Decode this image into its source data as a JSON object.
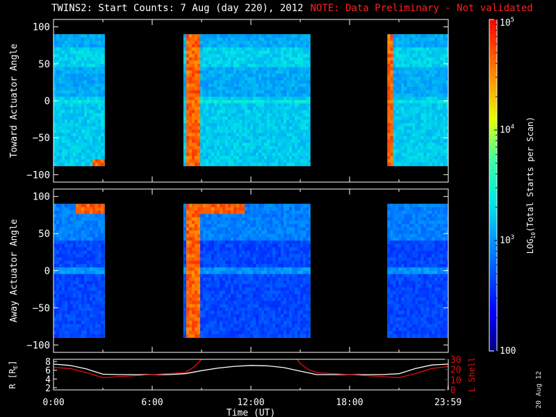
{
  "title": {
    "main": "TWINS2: Start Counts:  7 Aug (day 220), 2012",
    "note": "NOTE: Data Preliminary - Not validated"
  },
  "datestamp": "20 Aug 12",
  "colors": {
    "note": "#ff2020",
    "r_line": "#ffffff",
    "lshell_line": "#e01010",
    "frame": "#ffffff"
  },
  "chart_data": [
    {
      "type": "heatmap",
      "name": "toward",
      "ylabel": "Toward Actuator Angle",
      "ylim": [
        -110,
        110
      ],
      "yticks": [
        -100,
        -50,
        0,
        50,
        100
      ],
      "xlim": [
        0,
        24
      ],
      "data_yrange": [
        -88,
        90
      ],
      "data_blocks_hours": [
        [
          0,
          3.1
        ],
        [
          7.9,
          15.6
        ],
        [
          20.3,
          24
        ]
      ],
      "notable_features": [
        {
          "x": [
            2.3,
            3.1
          ],
          "y": [
            -88,
            -78
          ],
          "level": "high"
        },
        {
          "x": [
            8.0,
            8.8
          ],
          "y": [
            -88,
            90
          ],
          "level": "high"
        },
        {
          "x": [
            20.3,
            20.6
          ],
          "y": [
            -88,
            90
          ],
          "level": "high"
        }
      ]
    },
    {
      "type": "heatmap",
      "name": "away",
      "ylabel": "Away Actuator Angle",
      "ylim": [
        -110,
        110
      ],
      "yticks": [
        -100,
        -50,
        0,
        50,
        100
      ],
      "xlim": [
        0,
        24
      ],
      "data_yrange": [
        -90,
        90
      ],
      "data_blocks_hours": [
        [
          0,
          3.1
        ],
        [
          7.9,
          15.6
        ],
        [
          20.3,
          24
        ]
      ],
      "notable_features": [
        {
          "x": [
            1.2,
            3.1
          ],
          "y": [
            75,
            90
          ],
          "level": "high"
        },
        {
          "x": [
            8.0,
            11.5
          ],
          "y": [
            75,
            90
          ],
          "level": "high"
        },
        {
          "x": [
            8.0,
            8.8
          ],
          "y": [
            -90,
            90
          ],
          "level": "high"
        }
      ]
    },
    {
      "type": "line",
      "name": "orbit",
      "ylabel": "R [R",
      "ylabel_sub": "E",
      "ylabel_end": "]",
      "ylabel_right": "L Shell",
      "ylim": [
        1.5,
        8.5
      ],
      "yticks": [
        2,
        4,
        6,
        8
      ],
      "ylim_right": [
        0,
        30
      ],
      "yticks_right": [
        0,
        10,
        20,
        30
      ],
      "xlabel": "Time (UT)",
      "xlim": [
        0,
        24
      ],
      "xtick_values": [
        0,
        6,
        12,
        18,
        23.983
      ],
      "xtick_labels": [
        "0:00",
        "6:00",
        "12:00",
        "18:00",
        "23:59"
      ],
      "series": [
        {
          "axis": "left",
          "x": [
            0,
            1,
            2,
            3,
            4,
            5,
            6,
            7,
            8,
            9,
            10,
            11,
            12,
            13,
            14,
            15,
            16,
            17,
            18,
            19,
            20,
            21,
            22,
            23,
            24
          ],
          "values": [
            7.4,
            7.1,
            6.3,
            5.1,
            5.0,
            5.0,
            5.0,
            5.0,
            5.2,
            5.9,
            6.5,
            6.9,
            7.1,
            7.0,
            6.6,
            5.8,
            5.0,
            5.0,
            5.0,
            5.0,
            5.0,
            5.2,
            6.4,
            7.2,
            7.4
          ]
        },
        {
          "axis": "right",
          "x": [
            0,
            1,
            2,
            3,
            4,
            5,
            6,
            7,
            8,
            8.5,
            9,
            9.5,
            14.5,
            15,
            15.5,
            16,
            17,
            18,
            19,
            20,
            21,
            22,
            23,
            24
          ],
          "values": [
            22,
            21,
            17,
            12,
            13,
            14,
            15,
            16,
            17,
            22,
            30,
            36,
            36,
            26,
            20,
            17,
            16,
            15,
            14,
            13,
            12,
            16,
            21,
            23
          ]
        }
      ]
    },
    {
      "type": "colorbar",
      "name": "colorbar",
      "label": "LOG",
      "label_sub": "10",
      "label_end": "(Total Starts per Scan)",
      "scale": "log",
      "range": [
        100,
        100000
      ],
      "ticks": [
        100,
        1000,
        10000,
        100000
      ],
      "tick_labels": [
        {
          "base": "100",
          "exp": ""
        },
        {
          "base": "10",
          "exp": "3"
        },
        {
          "base": "10",
          "exp": "4"
        },
        {
          "base": "10",
          "exp": "5"
        }
      ]
    }
  ]
}
